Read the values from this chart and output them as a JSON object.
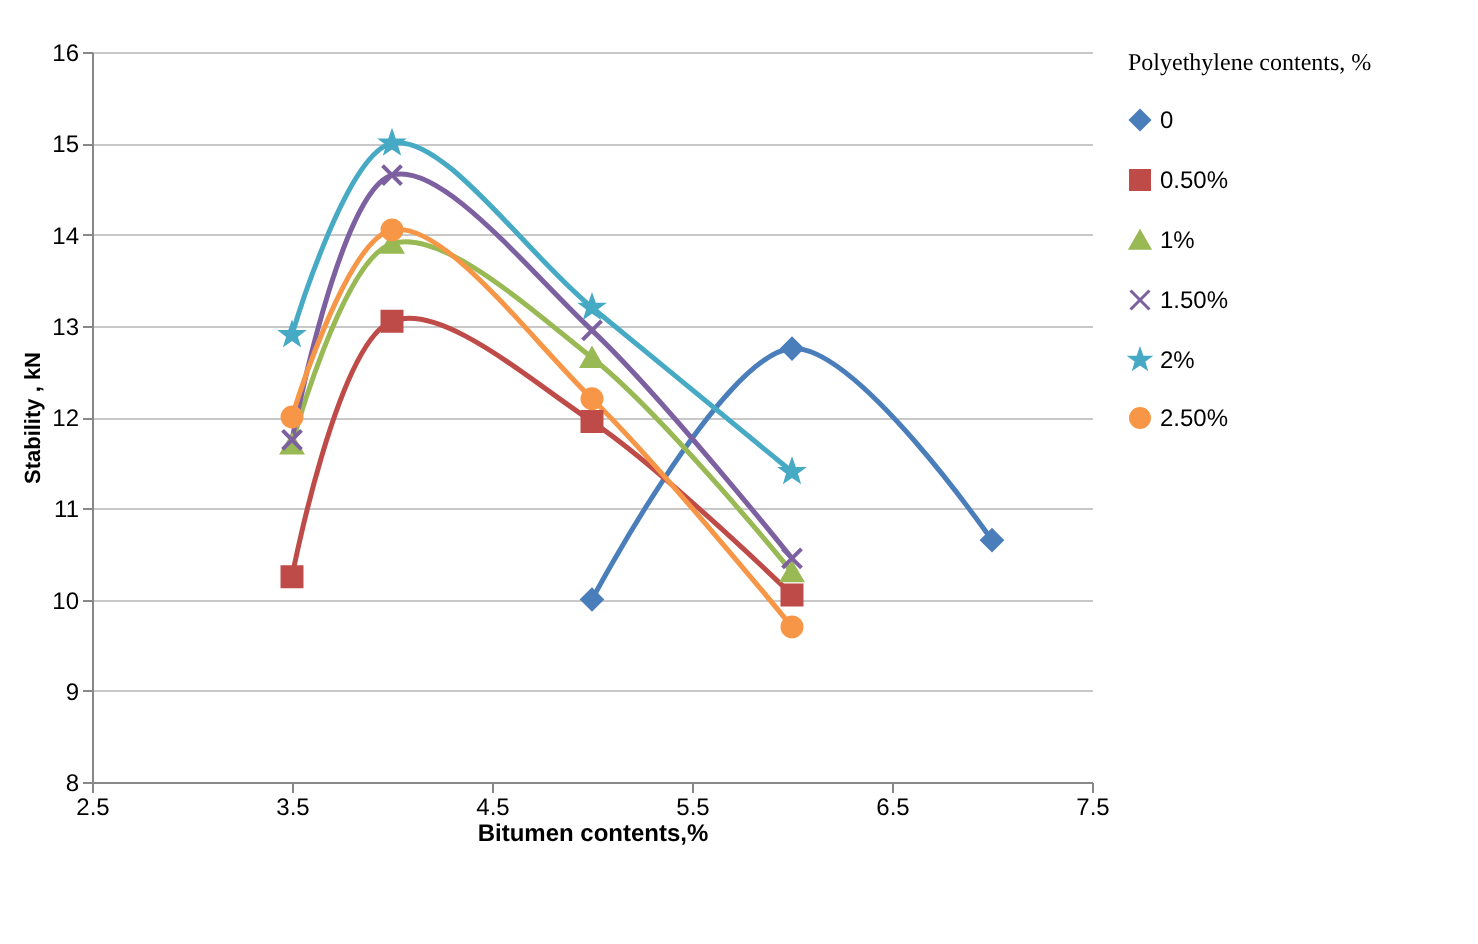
{
  "chart_data": {
    "type": "line",
    "xlabel": "Bitumen contents,%",
    "ylabel": "Stability , kN",
    "legend_title": "Polyethylene contents, %",
    "legend": "right",
    "grid": "y",
    "line_style": "solid",
    "xlim": [
      2.5,
      7.5
    ],
    "xticks": [
      2.5,
      3.5,
      4.5,
      5.5,
      6.5,
      7.5
    ],
    "ylim": [
      8,
      16
    ],
    "yticks": [
      8,
      9,
      10,
      11,
      12,
      13,
      14,
      15,
      16
    ],
    "series": [
      {
        "name": "0",
        "color": "#4a7ebb",
        "marker": "diamond",
        "x": [
          5,
          6,
          7
        ],
        "values": [
          10.0,
          12.75,
          10.65
        ]
      },
      {
        "name": "0.50%",
        "color": "#be4b48",
        "marker": "square",
        "x": [
          3.5,
          4,
          5,
          6
        ],
        "values": [
          10.25,
          13.05,
          11.95,
          10.05
        ]
      },
      {
        "name": "1%",
        "color": "#98b954",
        "marker": "triangle",
        "x": [
          3.5,
          4,
          5,
          6
        ],
        "values": [
          11.7,
          13.9,
          12.65,
          10.3
        ]
      },
      {
        "name": "1.50%",
        "color": "#7d60a0",
        "marker": "cross",
        "x": [
          3.5,
          4,
          5,
          6
        ],
        "values": [
          11.75,
          14.65,
          12.95,
          10.45
        ]
      },
      {
        "name": "2%",
        "color": "#46aac5",
        "marker": "star",
        "x": [
          3.5,
          4,
          5,
          6
        ],
        "values": [
          12.9,
          15.0,
          13.2,
          11.4
        ]
      },
      {
        "name": "2.50%",
        "color": "#f79646",
        "marker": "circle",
        "x": [
          3.5,
          4,
          5,
          6
        ],
        "values": [
          12.0,
          14.05,
          12.2,
          9.7
        ]
      }
    ]
  }
}
